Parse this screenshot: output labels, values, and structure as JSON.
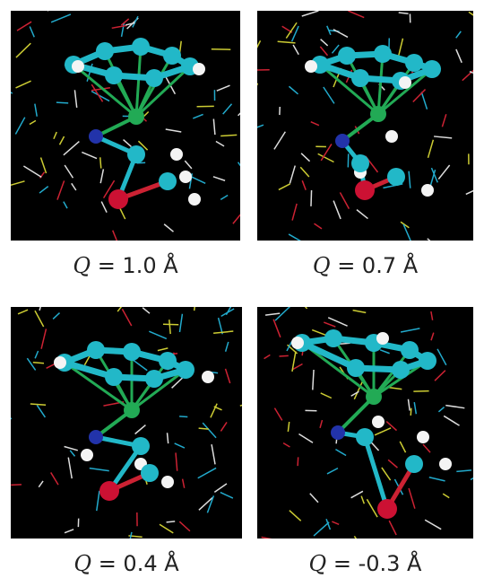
{
  "panels": [
    {
      "symbol": "Q",
      "text": "= 1.0 Å"
    },
    {
      "symbol": "Q",
      "text": "= 0.7 Å"
    },
    {
      "symbol": "Q",
      "text": "= 0.4 Å"
    },
    {
      "symbol": "Q",
      "text": "= -0.3 Å"
    }
  ]
}
